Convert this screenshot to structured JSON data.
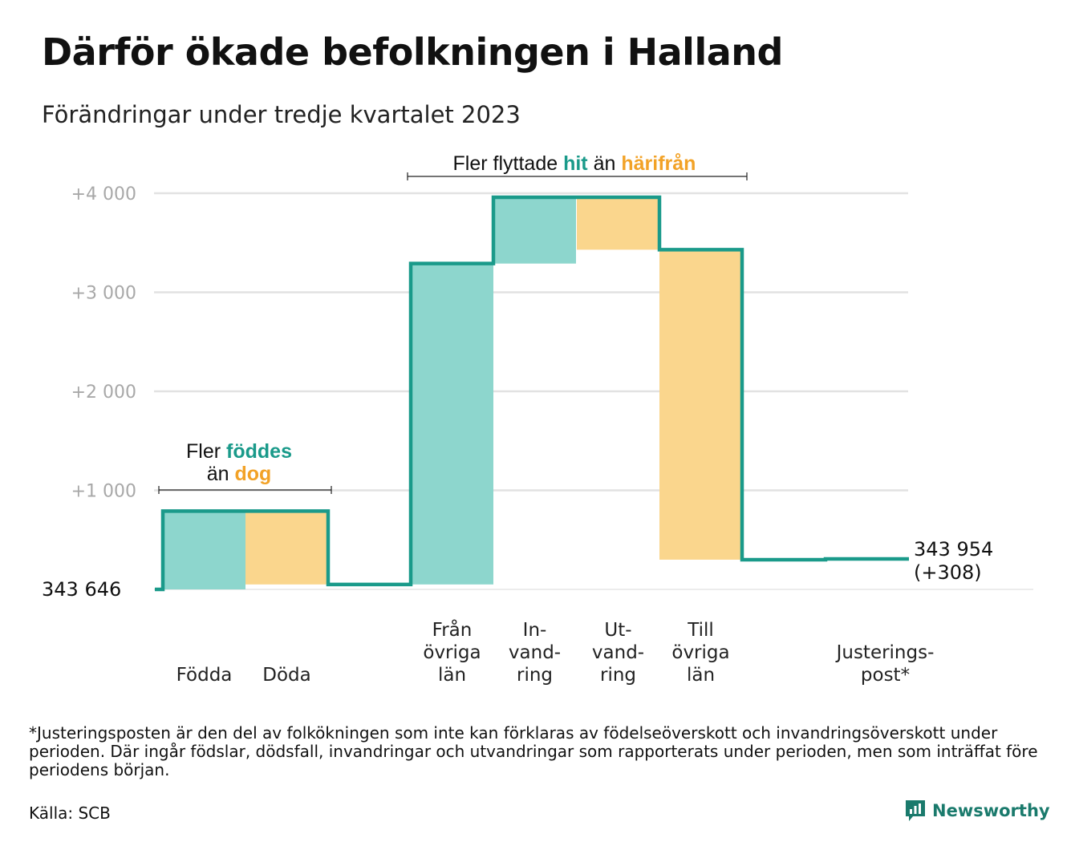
{
  "title": "Därför ökade befolkningen i Halland",
  "subtitle": "Förändringar under tredje kvartalet 2023",
  "chart_data": {
    "type": "waterfall",
    "start_label": "343 646",
    "end_label_line1": "343 954",
    "end_label_line2": "(+308)",
    "y_ticks": [
      {
        "value": 1000,
        "label": "+1 000"
      },
      {
        "value": 2000,
        "label": "+2 000"
      },
      {
        "value": 3000,
        "label": "+3 000"
      },
      {
        "value": 4000,
        "label": "+4 000"
      }
    ],
    "ylim": [
      0,
      4000
    ],
    "steps": [
      {
        "label": [
          "Födda"
        ],
        "change": 790,
        "direction": "in"
      },
      {
        "label": [
          "Döda"
        ],
        "change": -740,
        "direction": "out"
      },
      {
        "label": [
          "Från",
          "övriga",
          "län"
        ],
        "change": 3240,
        "direction": "in"
      },
      {
        "label": [
          "In-",
          "vand-",
          "ring"
        ],
        "change": 670,
        "direction": "in"
      },
      {
        "label": [
          "Ut-",
          "vand-",
          "ring"
        ],
        "change": -530,
        "direction": "out"
      },
      {
        "label": [
          "Till",
          "övriga",
          "län"
        ],
        "change": -3130,
        "direction": "out"
      },
      {
        "label": [
          "Justerings-",
          "post*"
        ],
        "change": 8,
        "direction": "adjust"
      }
    ],
    "colors": {
      "in": "#8dd6cd",
      "out": "#fad68d",
      "line": "#1a9a8a",
      "grid": "#e2e2e2"
    }
  },
  "annotations": {
    "births": {
      "pre": "Fler",
      "hl1": "föddes",
      "mid": "än",
      "hl2": "dog"
    },
    "moves": {
      "pre": "Fler flyttade",
      "hl1": "hit",
      "mid": "än",
      "hl2": "härifrån"
    }
  },
  "footnote": "*Justeringsposten är den del av folkökningen som inte kan förklaras av födelseöverskott och invandringsöverskott under perioden. Där ingår födslar, dödsfall, invandringar och utvandringar som rapporterats under perioden, men som inträffat före periodens början.",
  "source": "Källa: SCB",
  "brand": "Newsworthy"
}
